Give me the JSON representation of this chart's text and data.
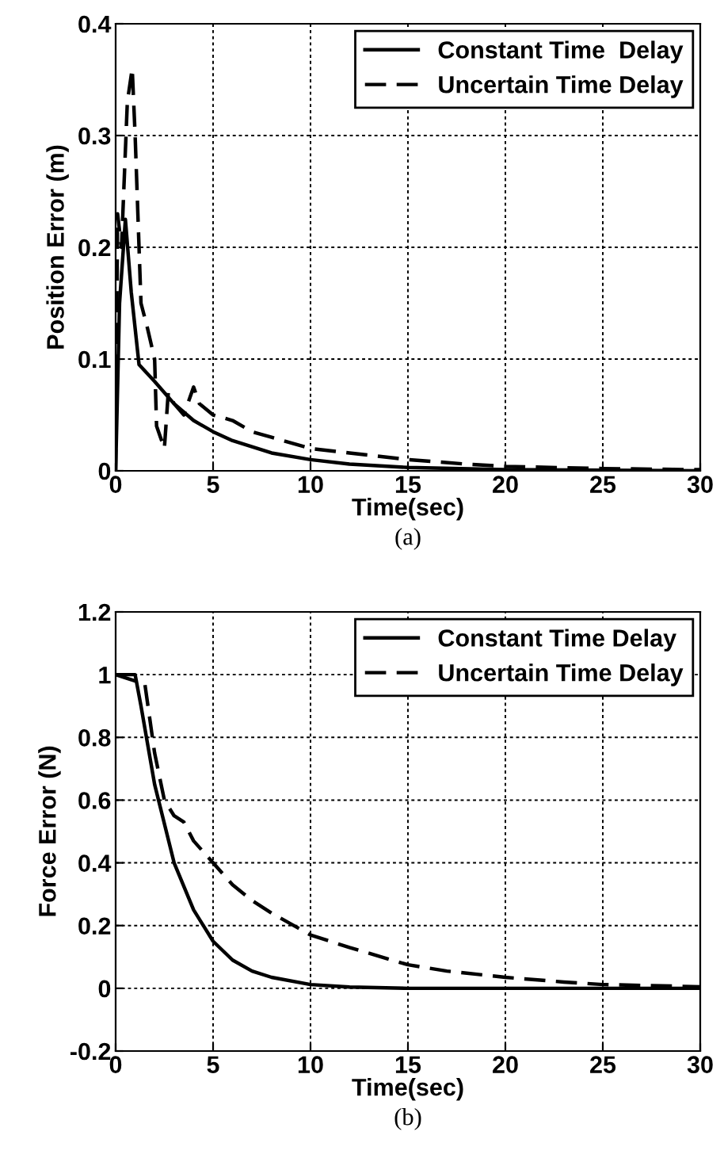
{
  "chart_data": [
    {
      "type": "line",
      "xlabel": "Time(sec)",
      "ylabel": "Position Error (m)",
      "annotations": [
        "(a)"
      ],
      "xlim": [
        0,
        30
      ],
      "ylim": [
        0,
        0.4
      ],
      "xticks": [
        0,
        5,
        10,
        15,
        20,
        25,
        30
      ],
      "yticks": [
        0,
        0.1,
        0.2,
        0.3,
        0.4
      ],
      "grid": true,
      "legend": "top right",
      "series": [
        {
          "name": "Constant Time  Delay",
          "color": "#000000",
          "line_style": "solid",
          "x": [
            0,
            0.2,
            0.5,
            0.8,
            1.2,
            2,
            3,
            4,
            5,
            6,
            8,
            10,
            12,
            15,
            20,
            30
          ],
          "values": [
            0,
            0.15,
            0.225,
            0.16,
            0.095,
            0.08,
            0.06,
            0.045,
            0.035,
            0.027,
            0.016,
            0.01,
            0.006,
            0.003,
            0.001,
            0
          ]
        },
        {
          "name": "Uncertain Time Delay",
          "color": "#000000",
          "line_style": "dashed",
          "x": [
            0,
            0.1,
            0.3,
            0.6,
            0.85,
            1.0,
            1.3,
            1.6,
            2.0,
            2.1,
            2.3,
            2.5,
            2.7,
            3.0,
            3.5,
            4.0,
            4.3,
            5,
            6,
            7,
            8,
            10,
            12,
            15,
            18,
            20,
            25,
            30
          ],
          "values": [
            0,
            0.23,
            0.2,
            0.33,
            0.36,
            0.3,
            0.15,
            0.13,
            0.1,
            0.04,
            0.03,
            0.02,
            0.07,
            0.06,
            0.05,
            0.075,
            0.06,
            0.05,
            0.045,
            0.035,
            0.03,
            0.02,
            0.016,
            0.01,
            0.006,
            0.004,
            0.002,
            0.001
          ]
        }
      ]
    },
    {
      "type": "line",
      "xlabel": "Time(sec)",
      "ylabel": "Force Error (N)",
      "annotations": [
        "(b)"
      ],
      "xlim": [
        0,
        30
      ],
      "ylim": [
        -0.2,
        1.2
      ],
      "xticks": [
        0,
        5,
        10,
        15,
        20,
        25,
        30
      ],
      "yticks": [
        -0.2,
        0,
        0.2,
        0.4,
        0.6,
        0.8,
        1,
        1.2
      ],
      "grid": true,
      "legend": "top right",
      "series": [
        {
          "name": "Constant Time Delay",
          "color": "#000000",
          "line_style": "solid",
          "x": [
            0,
            1,
            1.3,
            2,
            3,
            4,
            5,
            6,
            7,
            8,
            10,
            12,
            15,
            30
          ],
          "values": [
            1,
            1,
            0.9,
            0.65,
            0.4,
            0.25,
            0.15,
            0.09,
            0.055,
            0.035,
            0.012,
            0.004,
            0,
            0
          ]
        },
        {
          "name": "Uncertain Time Delay",
          "color": "#000000",
          "line_style": "dashed",
          "x": [
            0,
            1.5,
            2,
            2.5,
            3,
            3.5,
            4,
            5,
            6,
            7,
            8,
            10,
            12,
            15,
            17,
            20,
            23,
            25,
            30
          ],
          "values": [
            1,
            0.97,
            0.75,
            0.6,
            0.55,
            0.53,
            0.47,
            0.4,
            0.33,
            0.28,
            0.24,
            0.17,
            0.13,
            0.075,
            0.055,
            0.035,
            0.02,
            0.012,
            0.005
          ]
        }
      ]
    }
  ]
}
